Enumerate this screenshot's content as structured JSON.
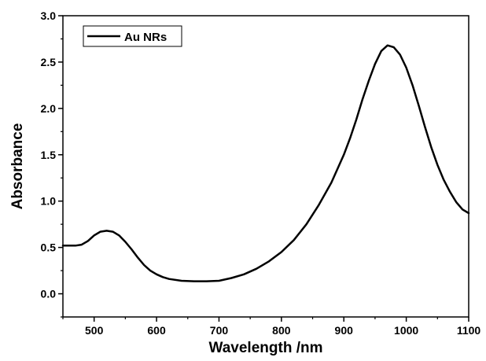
{
  "chart_data": {
    "type": "line",
    "title": "",
    "xlabel": "Wavelength /nm",
    "ylabel": "Absorbance",
    "xlim": [
      450,
      1100
    ],
    "ylim": [
      -0.25,
      3.0
    ],
    "xticks": [
      500,
      600,
      700,
      800,
      900,
      1000,
      1100
    ],
    "xtick_labels": [
      "500",
      "600",
      "700",
      "800",
      "900",
      "1000",
      "1100"
    ],
    "yticks": [
      0.0,
      0.5,
      1.0,
      1.5,
      2.0,
      2.5,
      3.0
    ],
    "ytick_labels": [
      "0.0",
      "0.5",
      "1.0",
      "1.5",
      "2.0",
      "2.5",
      "3.0"
    ],
    "grid": false,
    "legend_position": "top-left",
    "series": [
      {
        "name": "Au NRs",
        "color": "#000000",
        "x": [
          450,
          470,
          480,
          490,
          500,
          510,
          520,
          530,
          540,
          550,
          560,
          570,
          580,
          590,
          600,
          610,
          620,
          640,
          660,
          680,
          700,
          720,
          740,
          760,
          780,
          800,
          820,
          840,
          860,
          880,
          900,
          910,
          920,
          930,
          940,
          950,
          960,
          970,
          980,
          990,
          1000,
          1010,
          1020,
          1030,
          1040,
          1050,
          1060,
          1070,
          1080,
          1090,
          1100
        ],
        "y": [
          0.52,
          0.52,
          0.53,
          0.57,
          0.63,
          0.67,
          0.68,
          0.67,
          0.63,
          0.56,
          0.48,
          0.39,
          0.31,
          0.25,
          0.21,
          0.18,
          0.16,
          0.14,
          0.135,
          0.135,
          0.14,
          0.17,
          0.21,
          0.27,
          0.35,
          0.45,
          0.58,
          0.75,
          0.96,
          1.2,
          1.5,
          1.68,
          1.88,
          2.1,
          2.3,
          2.48,
          2.62,
          2.68,
          2.66,
          2.58,
          2.44,
          2.25,
          2.03,
          1.8,
          1.58,
          1.39,
          1.23,
          1.1,
          0.99,
          0.91,
          0.87
        ]
      }
    ]
  }
}
